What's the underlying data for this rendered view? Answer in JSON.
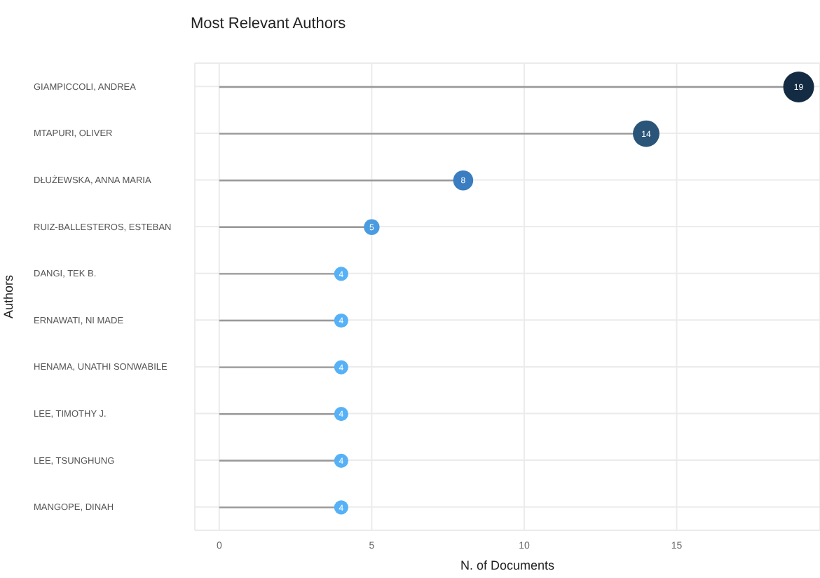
{
  "chart_data": {
    "type": "lollipop",
    "title": "Most Relevant Authors",
    "xlabel": "N. of Documents",
    "ylabel": "Authors",
    "orientation": "horizontal",
    "categories": [
      "GIAMPICCOLI, ANDREA",
      "MTAPURI, OLIVER",
      "DŁUŻEWSKA, ANNA MARIA",
      "RUIZ-BALLESTEROS, ESTEBAN",
      "DANGI, TEK B.",
      "ERNAWATI, NI MADE",
      "HENAMA, UNATHI SONWABILE",
      "LEE, TIMOTHY J.",
      "LEE, TSUNGHUNG",
      "MANGOPE, DINAH"
    ],
    "values": [
      19,
      14,
      8,
      5,
      4,
      4,
      4,
      4,
      4,
      4
    ],
    "sizes": [
      1,
      0.74,
      0.42,
      0.26,
      0.21,
      0.21,
      0.21,
      0.21,
      0.21,
      0.21
    ],
    "colors": [
      "#132b43",
      "#2a5579",
      "#3a7dc0",
      "#4a9be0",
      "#56b1f7",
      "#56b1f7",
      "#56b1f7",
      "#56b1f7",
      "#56b1f7",
      "#56b1f7"
    ],
    "color": "#999999",
    "xlim": [
      -0.8,
      19.7
    ],
    "xticks": [
      0,
      5,
      10,
      15
    ],
    "grid": true,
    "data_labels": true
  }
}
